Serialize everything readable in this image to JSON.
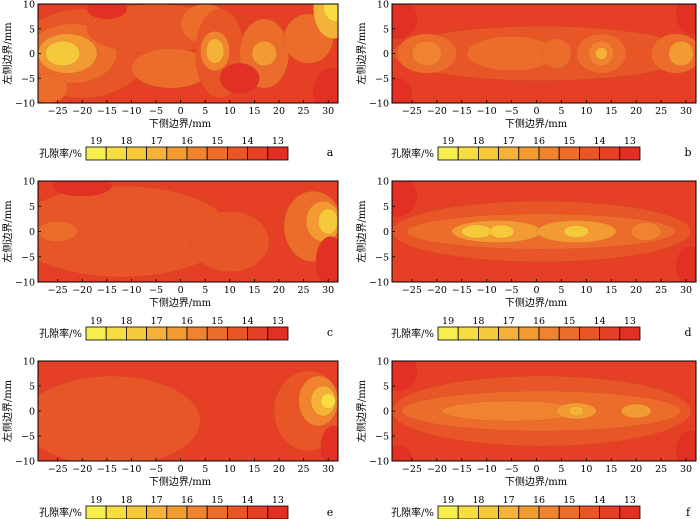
{
  "figure": {
    "xlabel": "下侧边界/mm",
    "ylabel": "左侧边界/mm",
    "colorbar_label": "孔隙率/%"
  },
  "colors": {
    "scale": [
      "#f6ee4e",
      "#f7dc42",
      "#f6c93b",
      "#f4b238",
      "#f29b33",
      "#ef832f",
      "#ec6c2b",
      "#e85628",
      "#e54026",
      "#e23124"
    ]
  },
  "chart_data": [
    {
      "type": "heatmap",
      "panel": "a",
      "x_ticks": [
        -25,
        -20,
        -15,
        -10,
        -5,
        0,
        5,
        10,
        15,
        20,
        25,
        30
      ],
      "y_ticks": [
        10,
        5,
        0,
        -5,
        -10
      ],
      "xlim": [
        -29,
        32
      ],
      "ylim": [
        -10,
        10
      ],
      "colorbar_ticks": [
        19,
        18,
        17,
        16,
        15,
        14,
        13
      ],
      "colorbar_range": [
        19,
        13
      ],
      "xlabel": "下侧边界/mm",
      "ylabel": "左侧边界/mm"
    },
    {
      "type": "heatmap",
      "panel": "b",
      "x_ticks": [
        -25,
        -20,
        -15,
        -10,
        -5,
        0,
        5,
        10,
        15,
        20,
        25,
        30
      ],
      "y_ticks": [
        10,
        5,
        0,
        -5,
        -10
      ],
      "xlim": [
        -29,
        32
      ],
      "ylim": [
        -10,
        10
      ],
      "colorbar_ticks": [
        19,
        18,
        17,
        16,
        15,
        14,
        13
      ],
      "colorbar_range": [
        19,
        13
      ],
      "xlabel": "下侧边界/mm",
      "ylabel": "左侧边界/mm"
    },
    {
      "type": "heatmap",
      "panel": "c",
      "x_ticks": [
        -25,
        -20,
        -15,
        -10,
        -5,
        0,
        5,
        10,
        15,
        20,
        25,
        30
      ],
      "y_ticks": [
        10,
        5,
        0,
        -5,
        -10
      ],
      "xlim": [
        -29,
        32
      ],
      "ylim": [
        -10,
        10
      ],
      "colorbar_ticks": [
        19,
        18,
        17,
        16,
        15,
        14,
        13
      ],
      "colorbar_range": [
        19,
        13
      ],
      "xlabel": "下侧边界/mm",
      "ylabel": "左侧边界/mm"
    },
    {
      "type": "heatmap",
      "panel": "d",
      "x_ticks": [
        -25,
        -20,
        -15,
        -10,
        -5,
        0,
        5,
        10,
        15,
        20,
        25,
        30
      ],
      "y_ticks": [
        10,
        5,
        0,
        -5,
        -10
      ],
      "xlim": [
        -29,
        32
      ],
      "ylim": [
        -10,
        10
      ],
      "colorbar_ticks": [
        19,
        18,
        17,
        16,
        15,
        14,
        13
      ],
      "colorbar_range": [
        19,
        13
      ],
      "xlabel": "下侧边界/mm",
      "ylabel": "左侧边界/mm"
    },
    {
      "type": "heatmap",
      "panel": "e",
      "x_ticks": [
        -25,
        -20,
        -15,
        -10,
        -5,
        0,
        5,
        10,
        15,
        20,
        25,
        30
      ],
      "y_ticks": [
        10,
        5,
        0,
        -5,
        -10
      ],
      "xlim": [
        -29,
        32
      ],
      "ylim": [
        -10,
        10
      ],
      "colorbar_ticks": [
        19,
        18,
        17,
        16,
        15,
        14,
        13
      ],
      "colorbar_range": [
        19,
        13
      ],
      "xlabel": "下侧边界/mm",
      "ylabel": "左侧边界/mm"
    },
    {
      "type": "heatmap",
      "panel": "f",
      "x_ticks": [
        -25,
        -20,
        -15,
        -10,
        -5,
        0,
        5,
        10,
        15,
        20,
        25,
        30
      ],
      "y_ticks": [
        10,
        5,
        0,
        -5,
        -10
      ],
      "xlim": [
        -29,
        32
      ],
      "ylim": [
        -10,
        10
      ],
      "colorbar_ticks": [
        19,
        18,
        17,
        16,
        15,
        14,
        13
      ],
      "colorbar_range": [
        19,
        13
      ],
      "xlabel": "下侧边界/mm",
      "ylabel": "左侧边界/mm"
    }
  ]
}
